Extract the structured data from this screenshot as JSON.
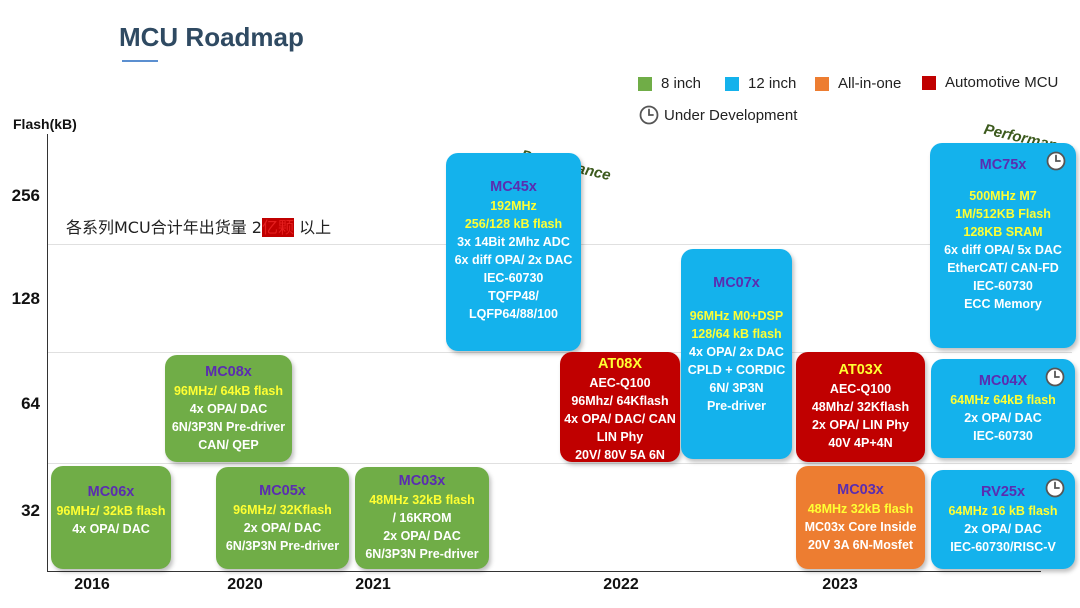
{
  "title": "MCU Roadmap",
  "legend": [
    {
      "label": "8 inch",
      "color": "#70ad47"
    },
    {
      "label": "12 inch",
      "color": "#14b2ec"
    },
    {
      "label": "All-in-one",
      "color": "#ed7d31"
    },
    {
      "label": "Automotive MCU",
      "color": "#c00000"
    }
  ],
  "legend_dev": {
    "label": "Under Development",
    "icon": "clock-icon"
  },
  "y_axis_title": "Flash(kB)",
  "y_ticks": [
    "256",
    "128",
    "64",
    "32"
  ],
  "x_ticks": [
    "2016",
    "2020",
    "2021",
    "2022",
    "2023"
  ],
  "note": {
    "prefix": "各系列MCU合计年出货量 2",
    "highlight": "亿颗",
    "suffix": " 以上"
  },
  "performance_label": "Performance",
  "products": [
    {
      "name": "MC06x",
      "highlight": [
        "96MHz/ 32kB flash"
      ],
      "details": [
        "4x OPA/ DAC"
      ],
      "category": "8 inch",
      "dev": false
    },
    {
      "name": "MC08x",
      "highlight": [
        "96MHz/ 64kB flash"
      ],
      "details": [
        "4x OPA/ DAC",
        "6N/3P3N Pre-driver",
        "CAN/ QEP"
      ],
      "category": "8 inch",
      "dev": false
    },
    {
      "name": "MC05x",
      "highlight": [
        "96MHz/ 32Kflash"
      ],
      "details": [
        "2x OPA/ DAC",
        "6N/3P3N Pre-driver"
      ],
      "category": "8 inch",
      "dev": false
    },
    {
      "name": "MC03x",
      "highlight": [
        "48MHz 32kB flash"
      ],
      "details": [
        "/ 16KROM",
        "2x OPA/ DAC",
        "6N/3P3N Pre-driver"
      ],
      "category": "8 inch",
      "dev": false
    },
    {
      "name": "MC45x",
      "highlight": [
        "192MHz",
        "256/128 kB flash"
      ],
      "details": [
        "3x 14Bit 2Mhz ADC",
        "6x diff OPA/ 2x DAC",
        "IEC-60730",
        "TQFP48/",
        "LQFP64/88/100"
      ],
      "category": "12 inch",
      "dev": false
    },
    {
      "name": "AT08X",
      "highlight": [],
      "details": [
        "AEC-Q100",
        "96Mhz/ 64Kflash",
        "4x OPA/ DAC/ CAN",
        "LIN Phy",
        "20V/ 80V 5A 6N"
      ],
      "category": "Automotive MCU",
      "dev": false
    },
    {
      "name": "MC07x",
      "highlight": [
        "96MHz M0+DSP",
        "128/64 kB flash"
      ],
      "details": [
        "4x OPA/ 2x DAC",
        "CPLD + CORDIC",
        "6N/ 3P3N",
        "Pre-driver"
      ],
      "category": "12 inch",
      "dev": false
    },
    {
      "name": "AT03X",
      "highlight": [],
      "details": [
        "AEC-Q100",
        "48Mhz/ 32Kflash",
        "2x OPA/ LIN Phy",
        "40V 4P+4N"
      ],
      "category": "Automotive MCU",
      "dev": false
    },
    {
      "name": "MC03x",
      "highlight": [
        "48MHz 32kB flash"
      ],
      "details": [
        "MC03x Core Inside",
        "20V 3A 6N-Mosfet"
      ],
      "category": "All-in-one",
      "dev": false
    },
    {
      "name": "MC75x",
      "highlight": [
        "500MHz M7",
        "1M/512KB Flash",
        "128KB SRAM"
      ],
      "details": [
        "6x diff OPA/ 5x DAC",
        "EtherCAT/ CAN-FD",
        "IEC-60730",
        "ECC Memory"
      ],
      "category": "12 inch",
      "dev": true
    },
    {
      "name": "MC04X",
      "highlight": [
        "64MHz 64kB flash"
      ],
      "details": [
        "2x OPA/ DAC",
        "IEC-60730"
      ],
      "category": "12 inch",
      "dev": true
    },
    {
      "name": "RV25x",
      "highlight": [
        "64MHz 16 kB flash"
      ],
      "details": [
        "2x OPA/ DAC",
        "IEC-60730/RISC-V"
      ],
      "category": "12 inch",
      "dev": true
    }
  ]
}
